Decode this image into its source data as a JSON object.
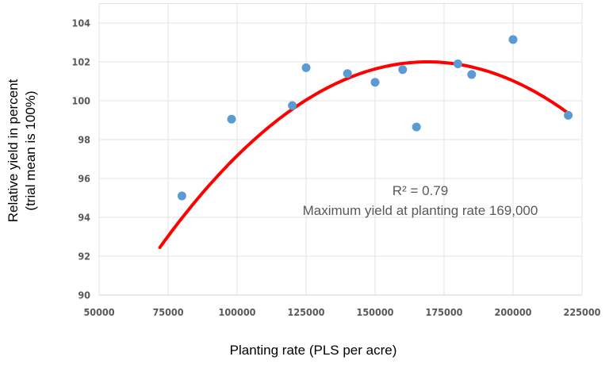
{
  "chart_data": {
    "type": "scatter",
    "title": "",
    "xlabel": "Planting rate (PLS per acre)",
    "ylabel_lines": [
      "Relative yield in percent",
      "(trial mean is 100%)"
    ],
    "xlim": [
      50000,
      225000
    ],
    "ylim": [
      90,
      105
    ],
    "x_ticks": [
      "50000",
      "75000",
      "100000",
      "125000",
      "150000",
      "175000",
      "200000",
      "225000"
    ],
    "y_ticks": [
      "90",
      "92",
      "94",
      "96",
      "98",
      "100",
      "102",
      "104"
    ],
    "grid": true,
    "points": [
      {
        "x": 80000,
        "y": 95.1
      },
      {
        "x": 98000,
        "y": 99.05
      },
      {
        "x": 120000,
        "y": 99.75
      },
      {
        "x": 125000,
        "y": 101.7
      },
      {
        "x": 140000,
        "y": 101.4
      },
      {
        "x": 150000,
        "y": 100.95
      },
      {
        "x": 160000,
        "y": 101.6
      },
      {
        "x": 165000,
        "y": 98.65
      },
      {
        "x": 180000,
        "y": 101.9
      },
      {
        "x": 185000,
        "y": 101.35
      },
      {
        "x": 200000,
        "y": 103.15
      },
      {
        "x": 220000,
        "y": 99.25
      }
    ],
    "trendline": {
      "type": "polynomial-2",
      "x_range": [
        72000,
        220000
      ],
      "peak_x": 169000,
      "peak_y": 102.0,
      "y_at_start": 92.45,
      "color": "#ff0000"
    },
    "point_color": "#5b9bd5",
    "annotations": [
      "R² = 0.79",
      "Maximum yield at planting rate 169,000"
    ]
  }
}
